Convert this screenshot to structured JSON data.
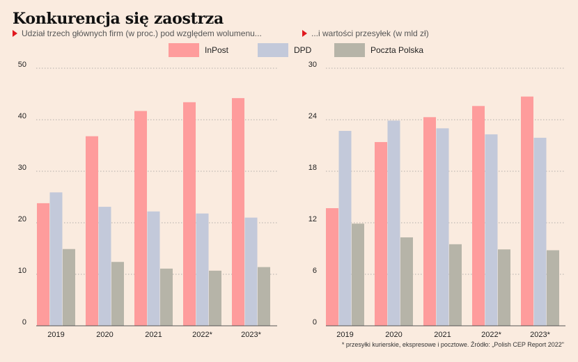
{
  "header": {
    "title": "Konkurencja się zaostrza",
    "subtitle_left": "Udział trzech głównych firm (w proc.) pod względem wolumenu...",
    "subtitle_right": "...i wartości przesyłek (w mld zł)"
  },
  "legend": [
    {
      "name": "InPost",
      "color": "#fe9c9c"
    },
    {
      "name": "DPD",
      "color": "#c3c9da"
    },
    {
      "name": "Poczta Polska",
      "color": "#b6b4a8"
    }
  ],
  "footnote": "* przesyłki kurierskie, ekspresowe i pocztowe. Źródło: „Polish CEP Report 2022\"",
  "chart_data": [
    {
      "type": "bar",
      "categories": [
        "2019",
        "2020",
        "2021",
        "2022*",
        "2023*"
      ],
      "yticks": [
        0,
        10,
        20,
        30,
        40,
        50
      ],
      "ylim": [
        0,
        50
      ],
      "grid": "dotted horizontal",
      "series": [
        {
          "name": "InPost",
          "values": [
            23.8,
            36.8,
            41.7,
            43.4,
            44.2
          ]
        },
        {
          "name": "DPD",
          "values": [
            25.9,
            23.1,
            22.2,
            21.8,
            21.0
          ]
        },
        {
          "name": "Poczta Polska",
          "values": [
            14.9,
            12.4,
            11.1,
            10.7,
            11.4
          ]
        }
      ]
    },
    {
      "type": "bar",
      "categories": [
        "2019",
        "2020",
        "2021",
        "2022*",
        "2023*"
      ],
      "yticks": [
        0,
        6,
        12,
        18,
        24,
        30
      ],
      "ylim": [
        0,
        30
      ],
      "grid": "dotted horizontal",
      "series": [
        {
          "name": "InPost",
          "values": [
            13.7,
            21.4,
            24.3,
            25.6,
            26.7
          ]
        },
        {
          "name": "DPD",
          "values": [
            22.7,
            23.9,
            23.0,
            22.3,
            21.9
          ]
        },
        {
          "name": "Poczta Polska",
          "values": [
            11.9,
            10.3,
            9.5,
            8.9,
            8.8
          ]
        }
      ]
    }
  ]
}
